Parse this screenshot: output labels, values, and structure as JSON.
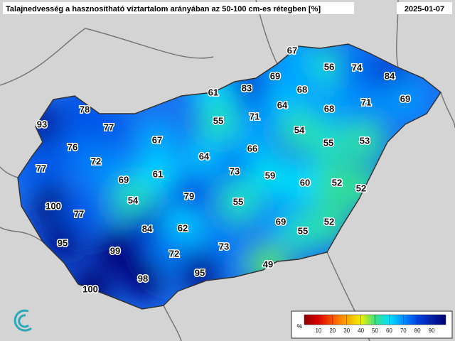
{
  "header": {
    "title": "Talajnedvesség a hasznosítható víztartalom arányában az 50-100 cm-es rétegben [%]",
    "date": "2025-01-07"
  },
  "labels": [
    67,
    56,
    74,
    84,
    69,
    83,
    61,
    68,
    71,
    69,
    64,
    71,
    55,
    68,
    78,
    93,
    77,
    54,
    55,
    53,
    67,
    76,
    66,
    72,
    64,
    77,
    73,
    59,
    69,
    61,
    60,
    52,
    52,
    79,
    54,
    55,
    100,
    77,
    69,
    52,
    84,
    62,
    55,
    95,
    73,
    99,
    72,
    49,
    95,
    98,
    100
  ],
  "colorbar": {
    "unit": "%",
    "lim": [
      0,
      100
    ],
    "ticks": [
      10,
      20,
      30,
      40,
      50,
      60,
      70,
      80,
      90
    ]
  }
}
